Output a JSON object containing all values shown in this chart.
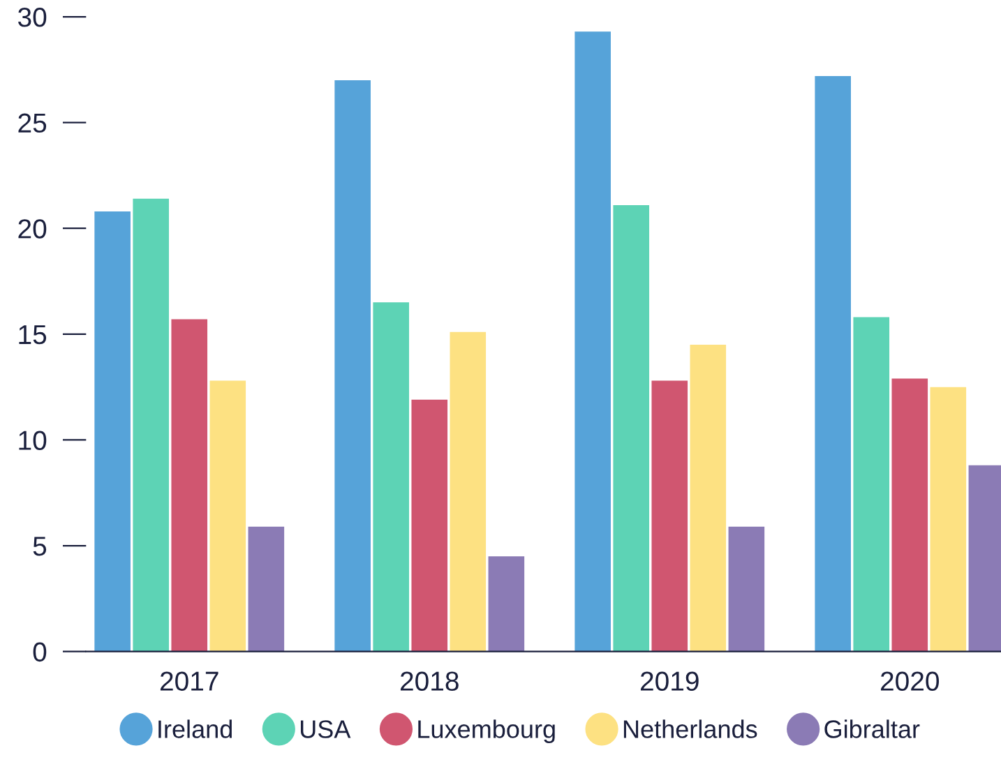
{
  "chart_data": {
    "type": "bar",
    "categories": [
      "2017",
      "2018",
      "2019",
      "2020"
    ],
    "series": [
      {
        "name": "Ireland",
        "color": "#56a3d9",
        "values": [
          20.8,
          27.0,
          29.3,
          27.2
        ]
      },
      {
        "name": "USA",
        "color": "#5dd3b5",
        "values": [
          21.4,
          16.5,
          21.1,
          15.8
        ]
      },
      {
        "name": "Luxembourg",
        "color": "#d05670",
        "values": [
          15.7,
          11.9,
          12.8,
          12.9
        ]
      },
      {
        "name": "Netherlands",
        "color": "#fde182",
        "values": [
          12.8,
          15.1,
          14.5,
          12.5
        ]
      },
      {
        "name": "Gibraltar",
        "color": "#8b7bb5",
        "values": [
          5.9,
          4.5,
          5.9,
          8.8
        ]
      }
    ],
    "ylim": [
      0,
      30
    ],
    "yticks": [
      0,
      5,
      10,
      15,
      20,
      25,
      30
    ],
    "grid": false,
    "legend": "bottom"
  }
}
